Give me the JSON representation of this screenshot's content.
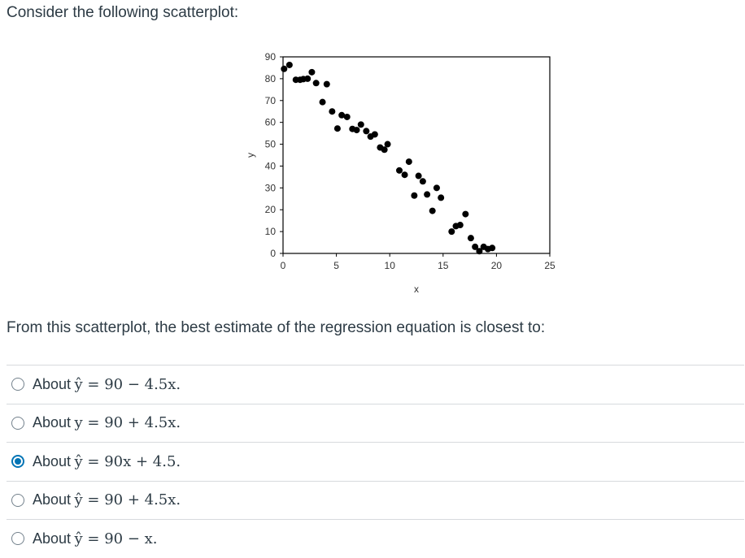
{
  "question": {
    "intro": "Consider the following scatterplot:",
    "prompt": "From this scatterplot, the best estimate of the regression equation is closest to:"
  },
  "chart_data": {
    "type": "scatter",
    "xlabel": "x",
    "ylabel": "y",
    "xlim": [
      0,
      25
    ],
    "ylim": [
      0,
      90
    ],
    "xticks": [
      0,
      5,
      10,
      15,
      20,
      25
    ],
    "yticks": [
      0,
      10,
      20,
      30,
      40,
      50,
      60,
      70,
      80,
      90
    ],
    "marker_color": "#000000",
    "points": [
      {
        "x": 0.1,
        "y": 84.5
      },
      {
        "x": 0.6,
        "y": 86.3
      },
      {
        "x": 1.2,
        "y": 79.5
      },
      {
        "x": 1.6,
        "y": 79.5
      },
      {
        "x": 1.9,
        "y": 79.8
      },
      {
        "x": 2.3,
        "y": 80.0
      },
      {
        "x": 2.7,
        "y": 83.0
      },
      {
        "x": 3.1,
        "y": 78.0
      },
      {
        "x": 3.7,
        "y": 69.3
      },
      {
        "x": 4.1,
        "y": 77.5
      },
      {
        "x": 4.6,
        "y": 65.0
      },
      {
        "x": 5.1,
        "y": 57.2
      },
      {
        "x": 5.5,
        "y": 63.3
      },
      {
        "x": 6.0,
        "y": 62.5
      },
      {
        "x": 6.5,
        "y": 57.0
      },
      {
        "x": 6.9,
        "y": 56.5
      },
      {
        "x": 7.3,
        "y": 59.0
      },
      {
        "x": 7.8,
        "y": 56.0
      },
      {
        "x": 8.2,
        "y": 53.5
      },
      {
        "x": 8.6,
        "y": 54.5
      },
      {
        "x": 9.1,
        "y": 48.5
      },
      {
        "x": 9.5,
        "y": 47.5
      },
      {
        "x": 9.8,
        "y": 50.0
      },
      {
        "x": 10.9,
        "y": 38.0
      },
      {
        "x": 11.4,
        "y": 36.0
      },
      {
        "x": 11.8,
        "y": 42.0
      },
      {
        "x": 12.3,
        "y": 26.5
      },
      {
        "x": 12.7,
        "y": 35.5
      },
      {
        "x": 13.1,
        "y": 33.0
      },
      {
        "x": 13.5,
        "y": 27.0
      },
      {
        "x": 14.0,
        "y": 19.5
      },
      {
        "x": 14.4,
        "y": 30.0
      },
      {
        "x": 14.8,
        "y": 25.5
      },
      {
        "x": 15.8,
        "y": 10.0
      },
      {
        "x": 16.2,
        "y": 12.5
      },
      {
        "x": 16.6,
        "y": 13.0
      },
      {
        "x": 17.1,
        "y": 18.0
      },
      {
        "x": 17.6,
        "y": 7.0
      },
      {
        "x": 18.0,
        "y": 3.0
      },
      {
        "x": 18.4,
        "y": 1.0
      },
      {
        "x": 18.8,
        "y": 3.0
      },
      {
        "x": 19.2,
        "y": 2.0
      },
      {
        "x": 19.6,
        "y": 2.5
      }
    ]
  },
  "answers": [
    {
      "label": "About",
      "equation": "ŷ = 90 − 4.5x.",
      "selected": false
    },
    {
      "label": "About",
      "equation": "y = 90 + 4.5x.",
      "selected": false
    },
    {
      "label": "About",
      "equation": "ŷ = 90x + 4.5.",
      "selected": true
    },
    {
      "label": "About",
      "equation": "ŷ = 90 + 4.5x.",
      "selected": false
    },
    {
      "label": "About",
      "equation": "ŷ = 90 − x.",
      "selected": false
    }
  ],
  "colors": {
    "accent": "#0374b5",
    "text": "#2d3b45",
    "divider": "#d7dadd"
  }
}
